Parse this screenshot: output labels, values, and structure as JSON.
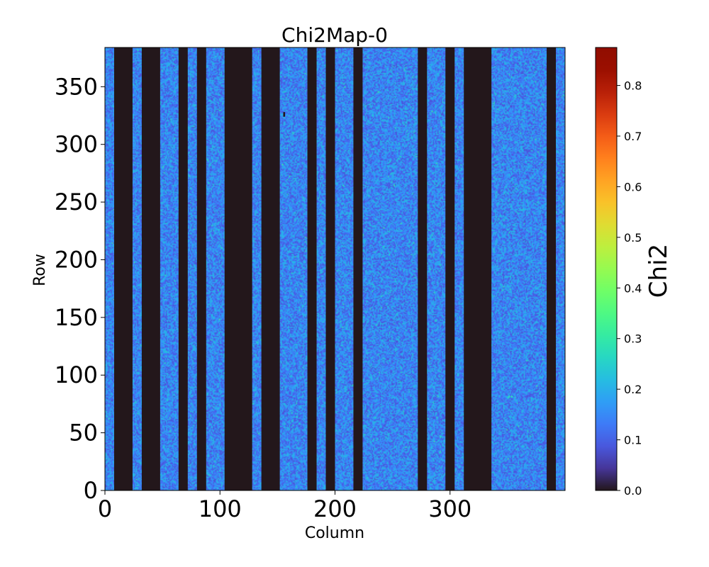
{
  "chart_data": {
    "type": "heatmap",
    "title": "Chi2Map-0",
    "xlabel": "Column",
    "ylabel": "Row",
    "xlim": [
      0,
      400
    ],
    "ylim": [
      0,
      384
    ],
    "x_ticks": [
      0,
      100,
      200,
      300
    ],
    "x_tick_labels": [
      "0",
      "100",
      "200",
      "300"
    ],
    "y_ticks": [
      0,
      50,
      100,
      150,
      200,
      250,
      300,
      350
    ],
    "y_tick_labels": [
      "0",
      "50",
      "100",
      "150",
      "200",
      "250",
      "300",
      "350"
    ],
    "colorbar": {
      "label": "Chi2",
      "colormap": "turbo",
      "range": [
        0,
        0.875
      ],
      "ticks": [
        0.0,
        0.1,
        0.2,
        0.3,
        0.4,
        0.5,
        0.6,
        0.7,
        0.8
      ],
      "tick_labels": [
        "0.0",
        "0.1",
        "0.2",
        "0.3",
        "0.4",
        "0.5",
        "0.6",
        "0.7",
        "0.8"
      ]
    },
    "typical_value_range": [
      0.08,
      0.22
    ],
    "zero_value_column_bands": [
      [
        8,
        24
      ],
      [
        32,
        48
      ],
      [
        64,
        72
      ],
      [
        80,
        88
      ],
      [
        104,
        128
      ],
      [
        136,
        152
      ],
      [
        176,
        184
      ],
      [
        192,
        200
      ],
      [
        216,
        224
      ],
      [
        272,
        280
      ],
      [
        296,
        304
      ],
      [
        312,
        336
      ],
      [
        384,
        392
      ]
    ],
    "marks": [
      {
        "column": 155,
        "row": 326,
        "value": 0.0
      }
    ]
  }
}
